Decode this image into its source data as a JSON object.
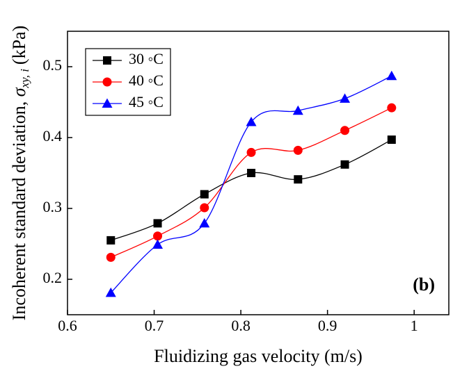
{
  "chart_data": {
    "type": "line",
    "x_label": "Fluidizing gas velocity (m/s)",
    "y_label": {
      "text": "Incoherent standard deviation, ",
      "symbol": "σ",
      "subscript": "xy, i",
      "unit": "(kPa)"
    },
    "annotation": "(b)",
    "x": [
      0.65,
      0.704,
      0.758,
      0.812,
      0.866,
      0.92,
      0.974
    ],
    "series": [
      {
        "name": "30 ◦C",
        "color": "#000000",
        "marker": "square",
        "values": [
          0.255,
          0.279,
          0.32,
          0.35,
          0.341,
          0.362,
          0.397
        ]
      },
      {
        "name": "40 ◦C",
        "color": "#ff0000",
        "marker": "circle",
        "values": [
          0.231,
          0.261,
          0.301,
          0.379,
          0.382,
          0.41,
          0.442
        ]
      },
      {
        "name": "45 ◦C",
        "color": "#0000ff",
        "marker": "triangle",
        "values": [
          0.181,
          0.249,
          0.279,
          0.422,
          0.438,
          0.455,
          0.487
        ]
      }
    ],
    "xlim": [
      0.6,
      1.04
    ],
    "xticks": [
      0.6,
      0.7,
      0.8,
      0.9,
      1.0
    ],
    "ylim": [
      0.15,
      0.55
    ],
    "yticks": [
      0.2,
      0.3,
      0.4,
      0.5
    ],
    "smooth": true,
    "legend": "upper left"
  }
}
